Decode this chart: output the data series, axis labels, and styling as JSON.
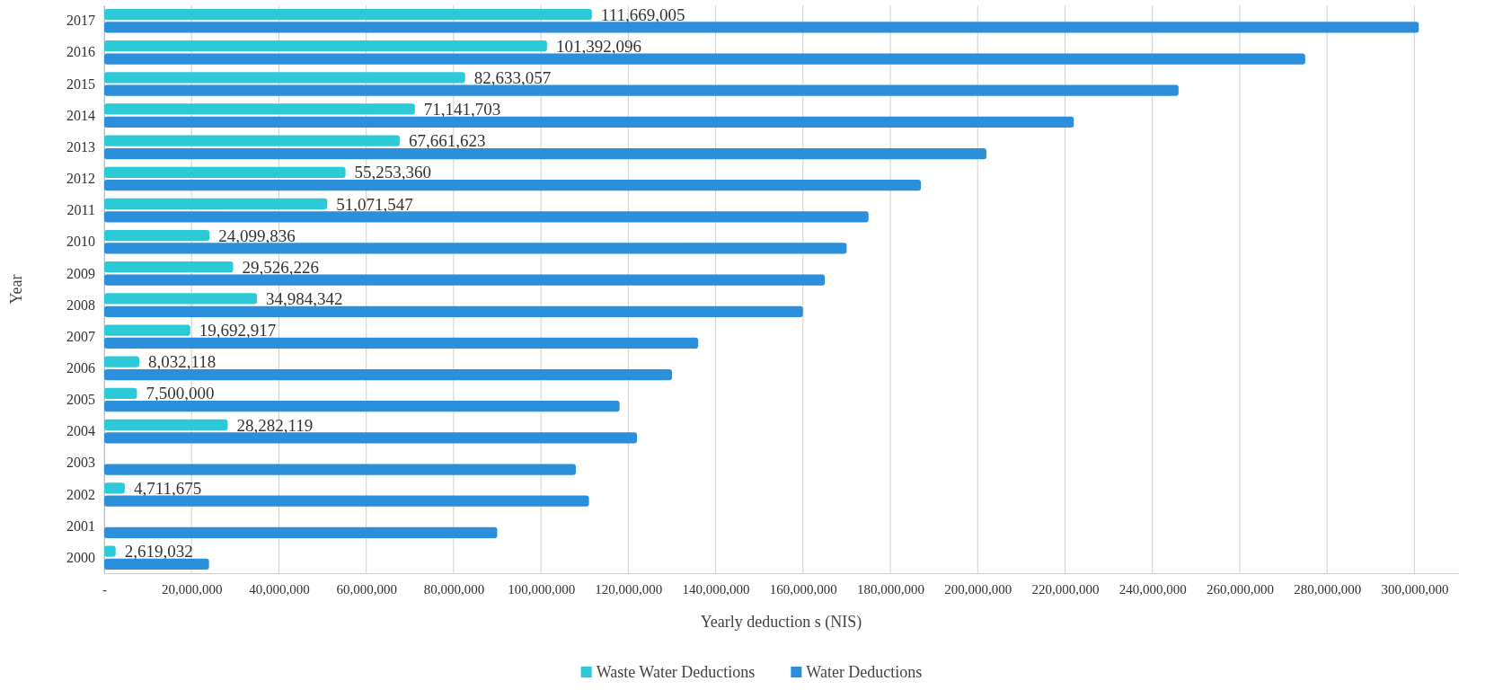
{
  "chart_data": {
    "type": "bar",
    "orientation": "horizontal",
    "xlabel": "Yearly deduction s (NIS)",
    "ylabel": "Year",
    "categories": [
      "2017",
      "2016",
      "2015",
      "2014",
      "2013",
      "2012",
      "2011",
      "2010",
      "2009",
      "2008",
      "2007",
      "2006",
      "2005",
      "2004",
      "2003",
      "2002",
      "2001",
      "2000"
    ],
    "series": [
      {
        "name": "Waste Water Deductions",
        "color": "#2cc9d6",
        "values": [
          111669005,
          101392096,
          82633057,
          71141703,
          67661623,
          55253360,
          51071547,
          24099836,
          29526226,
          34984342,
          19692917,
          8032118,
          7500000,
          28282119,
          null,
          4711675,
          null,
          2619032
        ],
        "value_labels": [
          "111,669,005",
          "101,392,096",
          "82,633,057",
          "71,141,703",
          "67,661,623",
          "55,253,360",
          "51,071,547",
          "24,099,836",
          "29,526,226",
          "34,984,342",
          "19,692,917",
          "8,032,118",
          "7,500,000",
          "28,282,119",
          null,
          "4,711,675",
          null,
          "2,619,032"
        ]
      },
      {
        "name": "Water Deductions",
        "color": "#2b8fdc",
        "values": [
          301000000,
          275000000,
          246000000,
          222000000,
          202000000,
          187000000,
          175000000,
          170000000,
          165000000,
          160000000,
          136000000,
          130000000,
          118000000,
          122000000,
          108000000,
          111000000,
          90000000,
          24000000
        ]
      }
    ],
    "xlim": [
      0,
      310000000
    ],
    "xticks": [
      {
        "value": 0,
        "label": "-"
      },
      {
        "value": 20000000,
        "label": "20,000,000"
      },
      {
        "value": 40000000,
        "label": "40,000,000"
      },
      {
        "value": 60000000,
        "label": "60,000,000"
      },
      {
        "value": 80000000,
        "label": "80,000,000"
      },
      {
        "value": 100000000,
        "label": "100,000,000"
      },
      {
        "value": 120000000,
        "label": "120,000,000"
      },
      {
        "value": 140000000,
        "label": "140,000,000"
      },
      {
        "value": 160000000,
        "label": "160,000,000"
      },
      {
        "value": 180000000,
        "label": "180,000,000"
      },
      {
        "value": 200000000,
        "label": "200,000,000"
      },
      {
        "value": 220000000,
        "label": "220,000,000"
      },
      {
        "value": 240000000,
        "label": "240,000,000"
      },
      {
        "value": 260000000,
        "label": "260,000,000"
      },
      {
        "value": 280000000,
        "label": "280,000,000"
      },
      {
        "value": 300000000,
        "label": "300,000,000"
      }
    ],
    "grid": "x",
    "legend": "bottom"
  }
}
